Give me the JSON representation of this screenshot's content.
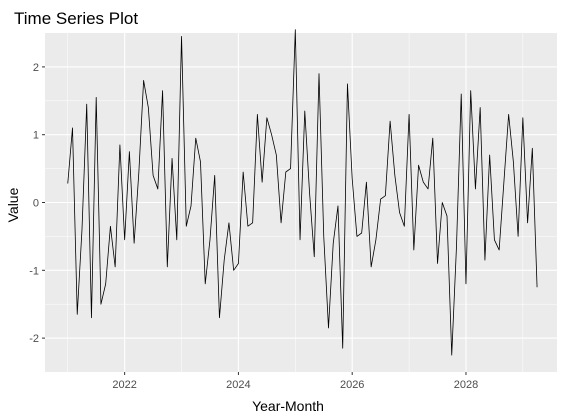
{
  "chart_data": {
    "type": "line",
    "title": "Time Series Plot",
    "xlabel": "Year-Month",
    "ylabel": "Value",
    "x_ticks": [
      2022,
      2024,
      2026,
      2028
    ],
    "y_ticks": [
      2,
      1,
      0,
      -1,
      -2
    ],
    "x_start": 2021.0,
    "x_step": 0.08333,
    "xlim": [
      2020.6,
      2029.6
    ],
    "ylim": [
      -2.5,
      2.5
    ],
    "grid": true,
    "legend": "none",
    "series": [
      {
        "values": [
          0.28,
          1.1,
          -1.65,
          -0.4,
          1.45,
          -1.7,
          1.55,
          -1.5,
          -1.2,
          -0.35,
          -0.95,
          0.85,
          -0.55,
          0.75,
          -0.6,
          0.45,
          1.8,
          1.4,
          0.4,
          0.2,
          1.65,
          -0.95,
          0.65,
          -0.55,
          2.45,
          -0.35,
          -0.05,
          0.95,
          0.6,
          -1.2,
          -0.55,
          0.4,
          -1.7,
          -0.85,
          -0.3,
          -1.0,
          -0.9,
          0.45,
          -0.35,
          -0.3,
          1.3,
          0.3,
          1.25,
          1.0,
          0.7,
          -0.3,
          0.45,
          0.5,
          2.55,
          -0.55,
          1.35,
          0.15,
          -0.8,
          1.9,
          -0.5,
          -1.85,
          -0.6,
          -0.05,
          -2.15,
          1.75,
          0.35,
          -0.5,
          -0.45,
          0.3,
          -0.95,
          -0.55,
          0.05,
          0.1,
          1.2,
          0.4,
          -0.15,
          -0.35,
          1.3,
          -0.7,
          0.55,
          0.3,
          0.2,
          0.95,
          -0.9,
          0.0,
          -0.2,
          -2.25,
          -0.65,
          1.6,
          -1.2,
          1.65,
          0.2,
          1.4,
          -0.85,
          0.7,
          -0.55,
          -0.7,
          0.3,
          1.3,
          0.6,
          -0.5,
          1.25,
          -0.3,
          0.8,
          -1.25
        ]
      }
    ]
  },
  "colors": {
    "panel": "#ebebeb",
    "grid_major": "#ffffff",
    "line": "#000000"
  }
}
